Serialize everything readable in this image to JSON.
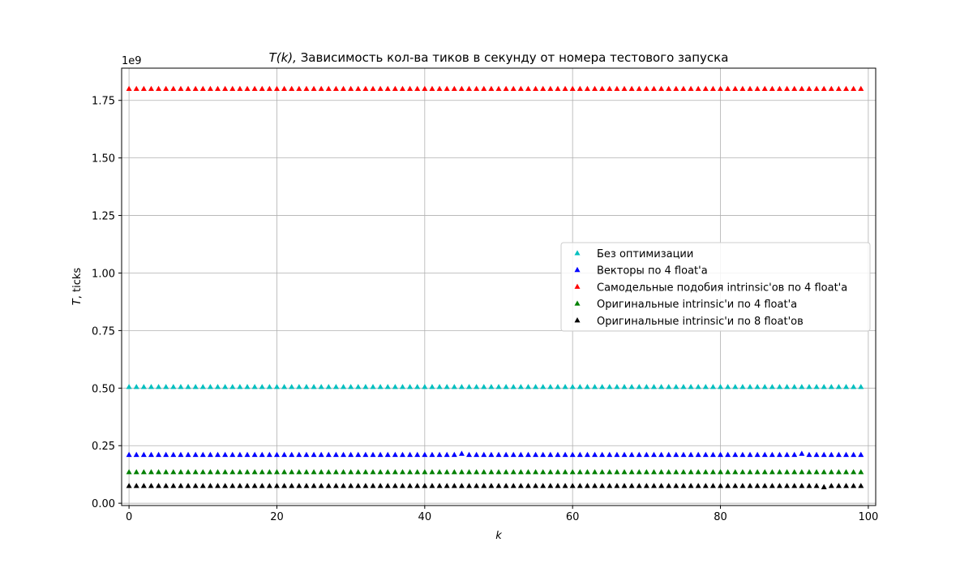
{
  "chart_data": {
    "type": "scatter",
    "title_main": "Зависимость кол-ва тиков в секунду от номера тестового запуска",
    "title_func": "T(k), ",
    "xlabel": "k",
    "ylabel_var": "T",
    "ylabel_unit": ", ticks",
    "y_offset_text": "1e9",
    "xlim": [
      -1,
      101
    ],
    "ylim": [
      -0.01,
      1.89
    ],
    "xticks": [
      0,
      20,
      40,
      60,
      80,
      100
    ],
    "xtick_labels": [
      "0",
      "20",
      "40",
      "60",
      "80",
      "100"
    ],
    "yticks": [
      0.0,
      0.25,
      0.5,
      0.75,
      1.0,
      1.25,
      1.5,
      1.75
    ],
    "ytick_labels": [
      "0.00",
      "0.25",
      "0.50",
      "0.75",
      "1.00",
      "1.25",
      "1.50",
      "1.75"
    ],
    "grid": true,
    "legend_position": "center-right",
    "x_range": [
      0,
      99
    ],
    "series": [
      {
        "name": "Без оптимизации",
        "color": "#00bfbf",
        "marker": "triangle",
        "y": 0.505,
        "outliers": []
      },
      {
        "name": "Векторы по 4 float'а",
        "color": "#0000ff",
        "marker": "triangle",
        "y": 0.21,
        "outliers": [
          {
            "x": 45,
            "y": 0.215
          },
          {
            "x": 91,
            "y": 0.215
          }
        ]
      },
      {
        "name": "Самодельные подобия intrinsic'ов по 4 float'а",
        "color": "#ff0000",
        "marker": "triangle",
        "y": 1.8,
        "outliers": []
      },
      {
        "name": "Оригинальные intrinsic'и по 4 float'а",
        "color": "#008000",
        "marker": "triangle",
        "y": 0.135,
        "outliers": []
      },
      {
        "name": "Оригинальные intrinsic'и по 8 float'ов",
        "color": "#000000",
        "marker": "triangle",
        "y": 0.075,
        "outliers": [
          {
            "x": 94,
            "y": 0.07
          }
        ]
      }
    ]
  }
}
